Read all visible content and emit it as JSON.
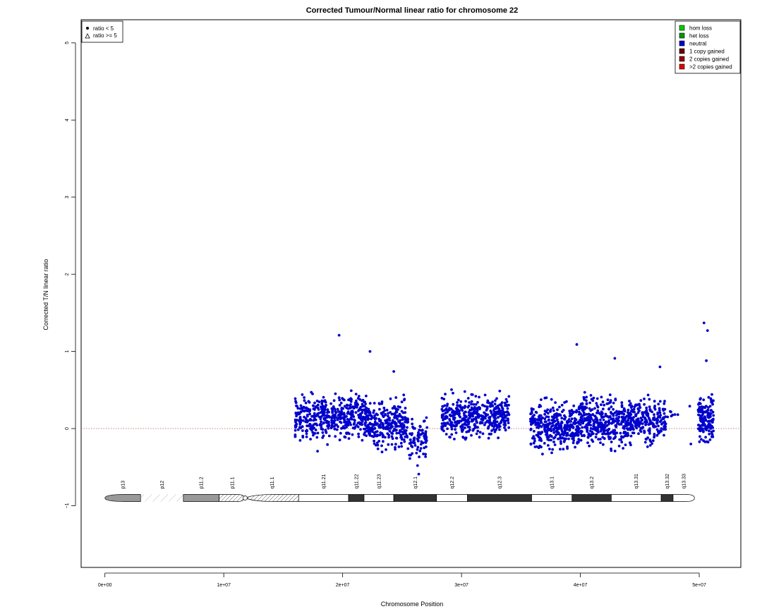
{
  "chart_data": {
    "type": "scatter",
    "title": "Corrected Tumour/Normal linear ratio for chromosome  22",
    "xlabel": "Chromosome Position",
    "ylabel": "Corrected T/N linear ratio",
    "xlim": [
      -2000000,
      53500000
    ],
    "ylim": [
      -1.8,
      5.3
    ],
    "x_ticks": [
      {
        "value": 0,
        "label": "0e+00"
      },
      {
        "value": 10000000,
        "label": "1e+07"
      },
      {
        "value": 20000000,
        "label": "2e+07"
      },
      {
        "value": 30000000,
        "label": "3e+07"
      },
      {
        "value": 40000000,
        "label": "4e+07"
      },
      {
        "value": 50000000,
        "label": "5e+07"
      }
    ],
    "y_ticks": [
      {
        "value": -1,
        "label": "−1"
      },
      {
        "value": 0,
        "label": "0"
      },
      {
        "value": 1,
        "label": "1"
      },
      {
        "value": 2,
        "label": "2"
      },
      {
        "value": 3,
        "label": "3"
      },
      {
        "value": 4,
        "label": "4"
      },
      {
        "value": 5,
        "label": "5"
      }
    ],
    "reference_line": {
      "y": 0,
      "color": "#c0504d",
      "style": "dotted"
    },
    "point_color": "#0000cc",
    "symbol_legend": {
      "placement": "top-left",
      "entries": [
        {
          "symbol": "dot",
          "label": "ratio < 5"
        },
        {
          "symbol": "triangle",
          "label": "ratio >= 5"
        }
      ]
    },
    "state_legend": {
      "placement": "top-right",
      "entries": [
        {
          "label": "hom loss",
          "color": "#00cc00"
        },
        {
          "label": "het loss",
          "color": "#009900"
        },
        {
          "label": "neutral",
          "color": "#0000cc"
        },
        {
          "label": "1 copy gained",
          "color": "#660000"
        },
        {
          "label": "2 copies gained",
          "color": "#990000"
        },
        {
          "label": ">2 copies gained",
          "color": "#dd0000"
        }
      ]
    },
    "ideogram": {
      "y": -0.9,
      "bands": [
        {
          "name": "p13",
          "start": 0,
          "end": 3000000,
          "stain": "gpos50",
          "shape": "left-cap"
        },
        {
          "name": "p12",
          "start": 3000000,
          "end": 6600000,
          "stain": "stalk"
        },
        {
          "name": "p11.2",
          "start": 6600000,
          "end": 9600000,
          "stain": "gpos50"
        },
        {
          "name": "p11.1",
          "start": 9600000,
          "end": 11800000,
          "stain": "gvar"
        },
        {
          "name": "q11.1",
          "start": 11800000,
          "end": 16300000,
          "stain": "gvar"
        },
        {
          "name": "q11.21",
          "start": 16300000,
          "end": 20500000,
          "stain": "gneg"
        },
        {
          "name": "q11.22",
          "start": 20500000,
          "end": 21800000,
          "stain": "gpos"
        },
        {
          "name": "q11.23",
          "start": 21800000,
          "end": 24300000,
          "stain": "gneg"
        },
        {
          "name": "q12.1",
          "start": 24300000,
          "end": 27900000,
          "stain": "gpos"
        },
        {
          "name": "q12.2",
          "start": 27900000,
          "end": 30500000,
          "stain": "gneg"
        },
        {
          "name": "q12.3",
          "start": 30500000,
          "end": 35900000,
          "stain": "gpos"
        },
        {
          "name": "q13.1",
          "start": 35900000,
          "end": 39300000,
          "stain": "gneg"
        },
        {
          "name": "q13.2",
          "start": 39300000,
          "end": 42600000,
          "stain": "gpos"
        },
        {
          "name": "q13.31",
          "start": 42600000,
          "end": 46800000,
          "stain": "gneg"
        },
        {
          "name": "q13.32",
          "start": 46800000,
          "end": 47800000,
          "stain": "gpos"
        },
        {
          "name": "q13.33",
          "start": 47800000,
          "end": 49600000,
          "stain": "gneg",
          "shape": "right-cap"
        }
      ],
      "centromere": 11800000
    },
    "series": [
      {
        "name": "neutral",
        "clusters": [
          {
            "start": 16000000,
            "end": 19500000,
            "mean": 0.14,
            "sd": 0.2,
            "count": 260
          },
          {
            "start": 19500000,
            "end": 22000000,
            "mean": 0.16,
            "sd": 0.2,
            "count": 210
          },
          {
            "start": 22000000,
            "end": 25500000,
            "mean": 0.06,
            "sd": 0.2,
            "count": 280
          },
          {
            "start": 25600000,
            "end": 27100000,
            "mean": -0.12,
            "sd": 0.18,
            "count": 80
          },
          {
            "start": 28300000,
            "end": 34000000,
            "mean": 0.16,
            "sd": 0.18,
            "count": 430
          },
          {
            "start": 35800000,
            "end": 40000000,
            "mean": 0.04,
            "sd": 0.2,
            "count": 360
          },
          {
            "start": 40000000,
            "end": 44300000,
            "mean": 0.09,
            "sd": 0.2,
            "count": 390
          },
          {
            "start": 44300000,
            "end": 47200000,
            "mean": 0.12,
            "sd": 0.19,
            "count": 200
          },
          {
            "start": 47200000,
            "end": 48200000,
            "mean": 0.15,
            "sd": 0.1,
            "count": 6
          },
          {
            "start": 49900000,
            "end": 51200000,
            "mean": 0.14,
            "sd": 0.22,
            "count": 140
          }
        ],
        "outliers": [
          {
            "x": 19700000,
            "y": 1.21
          },
          {
            "x": 22300000,
            "y": 1.0
          },
          {
            "x": 24300000,
            "y": 0.74
          },
          {
            "x": 39700000,
            "y": 1.09
          },
          {
            "x": 42900000,
            "y": 0.91
          },
          {
            "x": 46700000,
            "y": 0.8
          },
          {
            "x": 50400000,
            "y": 1.37
          },
          {
            "x": 50700000,
            "y": 1.27
          },
          {
            "x": 50600000,
            "y": 0.88
          },
          {
            "x": 26400000,
            "y": -0.59
          },
          {
            "x": 26300000,
            "y": -0.48
          },
          {
            "x": 49200000,
            "y": 0.29
          },
          {
            "x": 49300000,
            "y": -0.2
          },
          {
            "x": 48200000,
            "y": 0.18
          }
        ]
      }
    ]
  }
}
